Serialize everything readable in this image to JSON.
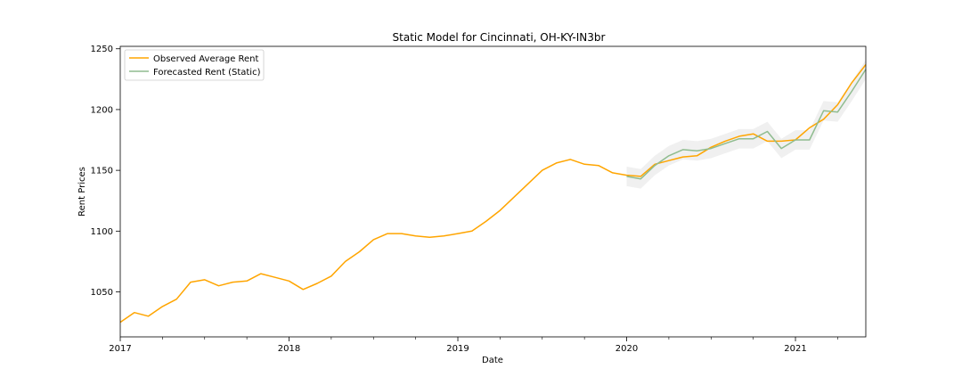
{
  "chart_data": {
    "type": "line",
    "title": "Static Model for Cincinnati, OH-KY-IN3br",
    "xlabel": "Date",
    "ylabel": "Rent Prices",
    "xlim": [
      "2017-01",
      "2021-06"
    ],
    "ylim": [
      1013,
      1252
    ],
    "x_ticks": [
      "2017",
      "2018",
      "2019",
      "2020",
      "2021"
    ],
    "y_ticks": [
      1050,
      1100,
      1150,
      1200,
      1250
    ],
    "grid": false,
    "legend_position": "top-left",
    "colors": {
      "observed": "#ffa500",
      "forecast": "#8fbc8f",
      "band": "#d3d3d3"
    },
    "series": [
      {
        "name": "Observed Average Rent",
        "x": [
          "2017-01",
          "2017-02",
          "2017-03",
          "2017-04",
          "2017-05",
          "2017-06",
          "2017-07",
          "2017-08",
          "2017-09",
          "2017-10",
          "2017-11",
          "2017-12",
          "2018-01",
          "2018-02",
          "2018-03",
          "2018-04",
          "2018-05",
          "2018-06",
          "2018-07",
          "2018-08",
          "2018-09",
          "2018-10",
          "2018-11",
          "2018-12",
          "2019-01",
          "2019-02",
          "2019-03",
          "2019-04",
          "2019-05",
          "2019-06",
          "2019-07",
          "2019-08",
          "2019-09",
          "2019-10",
          "2019-11",
          "2019-12",
          "2020-01",
          "2020-02",
          "2020-03",
          "2020-04",
          "2020-05",
          "2020-06",
          "2020-07",
          "2020-08",
          "2020-09",
          "2020-10",
          "2020-11",
          "2020-12",
          "2021-01",
          "2021-02",
          "2021-03",
          "2021-04",
          "2021-05",
          "2021-06"
        ],
        "values": [
          1025,
          1033,
          1030,
          1038,
          1044,
          1058,
          1060,
          1055,
          1058,
          1059,
          1065,
          1062,
          1059,
          1052,
          1057,
          1063,
          1075,
          1083,
          1093,
          1098,
          1098,
          1096,
          1095,
          1096,
          1098,
          1100,
          1108,
          1117,
          1128,
          1139,
          1150,
          1156,
          1159,
          1155,
          1154,
          1148,
          1146,
          1145,
          1155,
          1158,
          1161,
          1162,
          1169,
          1174,
          1178,
          1180,
          1174,
          1174,
          1175,
          1185,
          1192,
          1204,
          1222,
          1237
        ]
      },
      {
        "name": "Forecasted Rent (Static)",
        "x": [
          "2020-01",
          "2020-02",
          "2020-03",
          "2020-04",
          "2020-05",
          "2020-06",
          "2020-07",
          "2020-08",
          "2020-09",
          "2020-10",
          "2020-11",
          "2020-12",
          "2021-01",
          "2021-02",
          "2021-03",
          "2021-04",
          "2021-05",
          "2021-06"
        ],
        "values": [
          1145,
          1143,
          1154,
          1162,
          1167,
          1166,
          1168,
          1172,
          1176,
          1176,
          1182,
          1168,
          1175,
          1175,
          1199,
          1198,
          1215,
          1233
        ],
        "lower": [
          1137,
          1135,
          1146,
          1154,
          1159,
          1158,
          1160,
          1164,
          1168,
          1168,
          1174,
          1160,
          1167,
          1167,
          1191,
          1190,
          1207,
          1225
        ],
        "upper": [
          1153,
          1151,
          1162,
          1170,
          1175,
          1174,
          1176,
          1180,
          1184,
          1184,
          1190,
          1176,
          1183,
          1183,
          1207,
          1206,
          1223,
          1241
        ]
      }
    ]
  }
}
